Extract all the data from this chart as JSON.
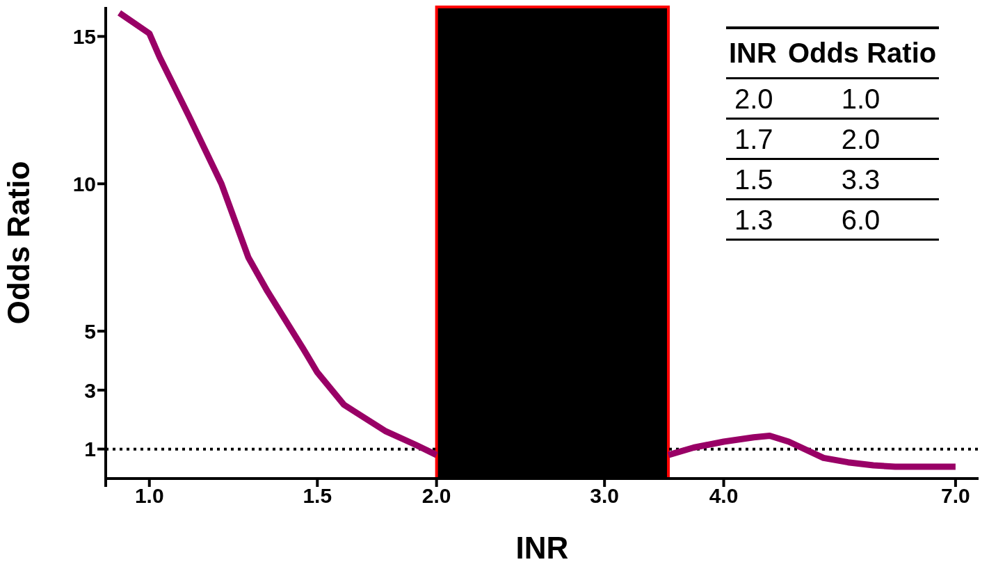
{
  "chart_data": {
    "type": "line",
    "xlabel": "INR",
    "ylabel": "Odds Ratio",
    "series": [
      {
        "color": "#990066",
        "x": [
          0.93,
          1.0,
          1.025,
          1.1,
          1.19,
          1.27,
          1.33,
          1.45,
          1.5,
          1.6,
          1.77,
          1.9,
          2.0,
          2.75,
          3.5,
          3.72,
          4.0,
          4.3,
          4.47,
          4.68,
          5.09,
          5.4,
          5.74,
          6.05,
          7.0
        ],
        "values": [
          15.8,
          15.1,
          14.3,
          12.3,
          10.0,
          7.5,
          6.35,
          4.4,
          3.6,
          2.5,
          1.6,
          1.15,
          0.8,
          null,
          0.8,
          1.05,
          1.25,
          1.4,
          1.45,
          1.25,
          0.7,
          0.55,
          0.45,
          0.4,
          0.4
        ]
      }
    ],
    "log": "x",
    "xlim": [
      0.9,
      7.4
    ],
    "xticks": [
      {
        "value": 0.9,
        "label": null
      },
      {
        "value": 1.0,
        "label": "1.0"
      },
      1.5,
      {
        "value": 2.0,
        "label": "2.0"
      },
      {
        "value": 3.0,
        "label": "3.0"
      },
      {
        "value": 4.0,
        "label": "4.0"
      },
      {
        "value": 7.0,
        "label": "7.0"
      }
    ],
    "ylim": [
      0,
      16
    ],
    "yticks": [
      1,
      3,
      5,
      10,
      15
    ],
    "marker": "none",
    "line_style": "solid",
    "ref_lines": [
      {
        "axis": "y",
        "value": 1,
        "color": "#000000",
        "line_style": "dotted"
      }
    ],
    "bands": [
      {
        "axis": "x",
        "from": 2.0,
        "to": 3.5,
        "color": "#000000"
      }
    ],
    "annotations": [
      "INR",
      "Odds Ratio",
      "2.0",
      "1.0",
      "1.7",
      "2.0",
      "1.5",
      "3.3",
      "1.3",
      "6.0"
    ]
  }
}
